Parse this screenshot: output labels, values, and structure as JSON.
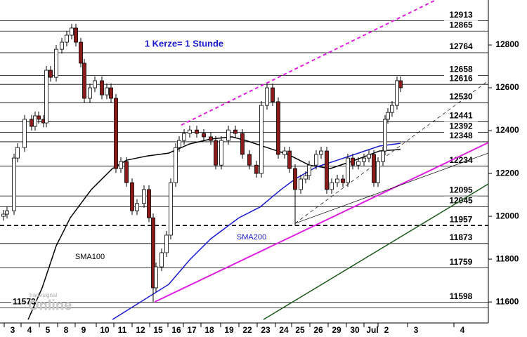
{
  "chart_data": {
    "type": "candlestick",
    "note_text": "1 Kerze= 1 Stunde",
    "watermark": [
      "tradesignal",
      "Online"
    ],
    "xlim": [
      0,
      278
    ],
    "ylim": [
      11502,
      13010
    ],
    "yticks": [
      11600,
      11800,
      12000,
      12200,
      12400,
      12600,
      12800
    ],
    "xticks": [
      {
        "value": 7.2,
        "label": "3"
      },
      {
        "value": 16.8,
        "label": "4"
      },
      {
        "value": 27.2,
        "label": "5"
      },
      {
        "value": 37.6,
        "label": "8"
      },
      {
        "value": 47.6,
        "label": "9"
      },
      {
        "value": 59.6,
        "label": "10"
      },
      {
        "value": 69.6,
        "label": "11"
      },
      {
        "value": 80,
        "label": "12"
      },
      {
        "value": 90,
        "label": "15"
      },
      {
        "value": 100.4,
        "label": "16"
      },
      {
        "value": 109.2,
        "label": "17"
      },
      {
        "value": 119.2,
        "label": "18"
      },
      {
        "value": 130.4,
        "label": "19"
      },
      {
        "value": 140.8,
        "label": "22"
      },
      {
        "value": 151.2,
        "label": "23"
      },
      {
        "value": 161.6,
        "label": "24"
      },
      {
        "value": 170.8,
        "label": "25"
      },
      {
        "value": 181.2,
        "label": "26"
      },
      {
        "value": 191.6,
        "label": "29"
      },
      {
        "value": 202,
        "label": "30"
      },
      {
        "value": 212,
        "label": "Jul"
      },
      {
        "value": 220,
        "label": "2"
      },
      {
        "value": 236.8,
        "label": "3"
      },
      {
        "value": 263.2,
        "label": "4"
      }
    ],
    "levels": [
      {
        "value": 12913
      },
      {
        "value": 12865
      },
      {
        "value": 12764
      },
      {
        "value": 12658
      },
      {
        "value": 12616
      },
      {
        "value": 12530
      },
      {
        "value": 12441
      },
      {
        "value": 12392
      },
      {
        "value": 12348
      },
      {
        "value": 12234
      },
      {
        "value": 12095
      },
      {
        "value": 12045
      },
      {
        "value": 11957,
        "dashed": true
      },
      {
        "value": 11873
      },
      {
        "value": 11759
      },
      {
        "value": 11598
      },
      {
        "value": 11573,
        "label_side": "left"
      }
    ],
    "up_color": "#ffffff",
    "down_color": "#8b1a1a",
    "candles": {
      "x": [
        2,
        4,
        8,
        10,
        14,
        18,
        20,
        22,
        24.8,
        26.4,
        28.8,
        32,
        35.2,
        38,
        40.8,
        43.2,
        46,
        48,
        51.2,
        54,
        58,
        60.8,
        63.2,
        66,
        68.8,
        72,
        75.2,
        78,
        82,
        84.8,
        87.2,
        88.8,
        92,
        94.8,
        97.2,
        100,
        102,
        104.8,
        108,
        112,
        116,
        120,
        122.8,
        126,
        130,
        134,
        138,
        142,
        146,
        148.8,
        152,
        155.2,
        158.4,
        162,
        164.8,
        168,
        171.2,
        174,
        176,
        180,
        182.8,
        186,
        188.8,
        192,
        195.2,
        198,
        200.8,
        204,
        207.2,
        210,
        212.8,
        215.2,
        218,
        219.2,
        220.8,
        223.2,
        226,
        228
      ],
      "open": [
        12000,
        12010,
        12026,
        12272,
        12321,
        12453,
        12420,
        12469,
        12453,
        12436,
        12682,
        12649,
        12780,
        12813,
        12846,
        12879,
        12813,
        12715,
        12551,
        12600,
        12633,
        12567,
        12600,
        12551,
        12223,
        12256,
        12157,
        12026,
        12060,
        12125,
        11993,
        11666,
        11764,
        11830,
        11912,
        12157,
        12321,
        12354,
        12387,
        12403,
        12387,
        12371,
        12354,
        12239,
        12354,
        12403,
        12387,
        12289,
        12239,
        12200,
        12518,
        12600,
        12535,
        12289,
        12305,
        12223,
        12125,
        12174,
        12190,
        12239,
        12289,
        12305,
        12125,
        12157,
        12174,
        12157,
        12272,
        12239,
        12256,
        12272,
        12289,
        12157,
        12256,
        12305,
        12453,
        12485,
        12518,
        12633
      ],
      "high": [
        12030,
        12046,
        12292,
        12341,
        12473,
        12473,
        12489,
        12489,
        12473,
        12702,
        12702,
        12800,
        12833,
        12866,
        12899,
        12899,
        12833,
        12735,
        12620,
        12653,
        12653,
        12620,
        12620,
        12571,
        12276,
        12276,
        12177,
        12080,
        12145,
        12145,
        12013,
        11784,
        11850,
        11932,
        12177,
        12341,
        12374,
        12407,
        12423,
        12423,
        12407,
        12391,
        12374,
        12374,
        12423,
        12423,
        12407,
        12309,
        12259,
        12538,
        12620,
        12620,
        12555,
        12325,
        12325,
        12243,
        12194,
        12210,
        12259,
        12309,
        12325,
        12325,
        12177,
        12194,
        12194,
        12292,
        12292,
        12276,
        12292,
        12309,
        12309,
        12276,
        12325,
        12473,
        12505,
        12538,
        12653,
        12653
      ],
      "low": [
        11980,
        11990,
        12006,
        12252,
        12301,
        12400,
        12400,
        12433,
        12416,
        12416,
        12629,
        12629,
        12760,
        12793,
        12826,
        12793,
        12695,
        12531,
        12531,
        12580,
        12547,
        12547,
        12531,
        12203,
        12203,
        12137,
        12006,
        12006,
        12040,
        11973,
        11600,
        11646,
        11744,
        11810,
        11892,
        12137,
        12301,
        12334,
        12367,
        12367,
        12351,
        12334,
        12219,
        12219,
        12334,
        12367,
        12269,
        12219,
        12180,
        12180,
        12498,
        12515,
        12269,
        12269,
        12203,
        11957,
        12105,
        12154,
        12170,
        12219,
        12269,
        12105,
        12105,
        12137,
        12137,
        12137,
        12219,
        12219,
        12236,
        12252,
        12137,
        12137,
        12236,
        12285,
        12433,
        12465,
        12498,
        12580
      ],
      "close": [
        12010,
        12026,
        12272,
        12321,
        12453,
        12420,
        12469,
        12453,
        12436,
        12682,
        12649,
        12780,
        12813,
        12846,
        12879,
        12813,
        12715,
        12551,
        12600,
        12633,
        12567,
        12600,
        12551,
        12223,
        12256,
        12157,
        12026,
        12060,
        12125,
        11993,
        11666,
        11764,
        11830,
        11912,
        12157,
        12321,
        12354,
        12387,
        12403,
        12387,
        12371,
        12354,
        12239,
        12354,
        12403,
        12387,
        12289,
        12239,
        12200,
        12518,
        12600,
        12535,
        12289,
        12305,
        12223,
        12125,
        12174,
        12190,
        12239,
        12289,
        12305,
        12125,
        12157,
        12174,
        12157,
        12272,
        12239,
        12256,
        12272,
        12289,
        12157,
        12256,
        12305,
        12453,
        12485,
        12518,
        12633,
        12600
      ]
    },
    "series": [
      {
        "name": "SMA100",
        "color": "#000000",
        "x": [
          16,
          24,
          32,
          40,
          52,
          64,
          72,
          84,
          96,
          108,
          120,
          132,
          140,
          152,
          164,
          176,
          188,
          200,
          216,
          228
        ],
        "values": [
          11518,
          11666,
          11862,
          11993,
          12125,
          12223,
          12262,
          12282,
          12295,
          12338,
          12361,
          12371,
          12354,
          12321,
          12289,
          12239,
          12223,
          12256,
          12305,
          12312
        ]
      },
      {
        "name": "SMA200",
        "color": "#1a1ad0",
        "x": [
          64,
          80,
          96,
          108,
          120,
          136,
          148,
          160,
          168,
          180,
          192,
          204,
          216,
          228
        ],
        "values": [
          11518,
          11600,
          11682,
          11797,
          11895,
          11993,
          12043,
          12125,
          12174,
          12230,
          12262,
          12295,
          12328,
          12341
        ]
      }
    ],
    "trendlines": [
      {
        "color": "#e020e0",
        "dashed": true,
        "width": 2,
        "x": [
          103.2,
          248
        ],
        "values": [
          12426,
          13010
        ]
      },
      {
        "color": "#e020e0",
        "width": 2,
        "x": [
          88,
          278
        ],
        "values": [
          11600,
          12344
        ]
      },
      {
        "color": "#1e5a1e",
        "width": 1.5,
        "x": [
          150,
          278
        ],
        "values": [
          11518,
          12151
        ]
      },
      {
        "color": "#000000",
        "dashed": true,
        "width": 0.7,
        "x": [
          168,
          278
        ],
        "values": [
          11967,
          12633
        ]
      },
      {
        "color": "#000000",
        "width": 0.7,
        "x": [
          168,
          278
        ],
        "values": [
          11967,
          12295
        ]
      }
    ]
  }
}
